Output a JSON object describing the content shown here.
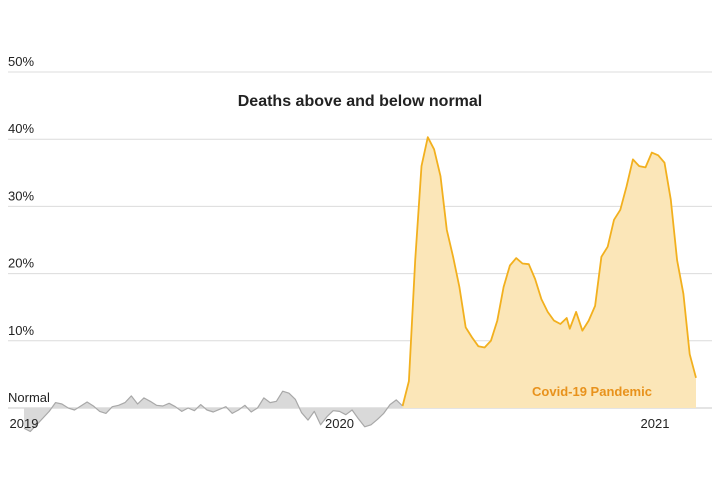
{
  "chart_data": {
    "type": "area",
    "title": "Deaths above and below normal",
    "xlabel": "",
    "ylabel": "",
    "y_unit": "%",
    "ylim": [
      -4,
      51
    ],
    "yticks": [
      {
        "value": 50,
        "label": "50%"
      },
      {
        "value": 40,
        "label": "40%"
      },
      {
        "value": 30,
        "label": "30%"
      },
      {
        "value": 20,
        "label": "20%"
      },
      {
        "value": 10,
        "label": "10%"
      },
      {
        "value": 0,
        "label": "Normal"
      }
    ],
    "xlim": [
      2019.0,
      2021.18
    ],
    "xticks": [
      {
        "value": 2019.0,
        "label": "2019"
      },
      {
        "value": 2020.0,
        "label": "2020"
      },
      {
        "value": 2021.0,
        "label": "2021"
      }
    ],
    "grid": true,
    "annotation": "Covid-19 Pandemic",
    "colors": {
      "baseline_line": "#a8a8a8",
      "baseline_fill": "#d9d9d9",
      "pandemic_line": "#f2b01e",
      "pandemic_fill": "#fbe6b8",
      "annotation_text": "#e8921c",
      "grid": "#dcdcdc"
    },
    "series": [
      {
        "segment": "baseline",
        "points": [
          [
            2019.0,
            -3.0
          ],
          [
            2019.02,
            -3.5
          ],
          [
            2019.04,
            -2.5
          ],
          [
            2019.06,
            -1.5
          ],
          [
            2019.08,
            -0.5
          ],
          [
            2019.1,
            0.8
          ],
          [
            2019.12,
            0.6
          ],
          [
            2019.14,
            0.0
          ],
          [
            2019.16,
            -0.3
          ],
          [
            2019.18,
            0.3
          ],
          [
            2019.2,
            0.9
          ],
          [
            2019.22,
            0.3
          ],
          [
            2019.24,
            -0.5
          ],
          [
            2019.26,
            -0.8
          ],
          [
            2019.28,
            0.2
          ],
          [
            2019.3,
            0.4
          ],
          [
            2019.32,
            0.8
          ],
          [
            2019.34,
            1.8
          ],
          [
            2019.36,
            0.6
          ],
          [
            2019.38,
            1.5
          ],
          [
            2019.4,
            1.0
          ],
          [
            2019.42,
            0.4
          ],
          [
            2019.44,
            0.3
          ],
          [
            2019.46,
            0.7
          ],
          [
            2019.48,
            0.2
          ],
          [
            2019.5,
            -0.5
          ],
          [
            2019.52,
            0.0
          ],
          [
            2019.54,
            -0.4
          ],
          [
            2019.56,
            0.5
          ],
          [
            2019.58,
            -0.3
          ],
          [
            2019.6,
            -0.6
          ],
          [
            2019.62,
            -0.2
          ],
          [
            2019.64,
            0.2
          ],
          [
            2019.66,
            -0.8
          ],
          [
            2019.68,
            -0.3
          ],
          [
            2019.7,
            0.4
          ],
          [
            2019.72,
            -0.6
          ],
          [
            2019.74,
            0.0
          ],
          [
            2019.76,
            1.5
          ],
          [
            2019.78,
            0.8
          ],
          [
            2019.8,
            1.0
          ],
          [
            2019.82,
            2.5
          ],
          [
            2019.84,
            2.2
          ],
          [
            2019.86,
            1.3
          ],
          [
            2019.88,
            -0.7
          ],
          [
            2019.9,
            -1.8
          ],
          [
            2019.92,
            -0.5
          ],
          [
            2019.94,
            -2.5
          ],
          [
            2019.96,
            -1.3
          ],
          [
            2019.98,
            -0.4
          ],
          [
            2020.0,
            -0.5
          ],
          [
            2020.02,
            -1.0
          ],
          [
            2020.04,
            -0.3
          ],
          [
            2020.06,
            -1.6
          ],
          [
            2020.08,
            -2.8
          ],
          [
            2020.1,
            -2.5
          ],
          [
            2020.12,
            -1.7
          ],
          [
            2020.14,
            -0.8
          ],
          [
            2020.16,
            0.5
          ],
          [
            2020.18,
            1.2
          ],
          [
            2020.2,
            0.3
          ]
        ]
      },
      {
        "segment": "pandemic",
        "points": [
          [
            2020.2,
            0.3
          ],
          [
            2020.22,
            4.0
          ],
          [
            2020.24,
            22.0
          ],
          [
            2020.26,
            36.0
          ],
          [
            2020.28,
            40.3
          ],
          [
            2020.3,
            38.5
          ],
          [
            2020.32,
            34.5
          ],
          [
            2020.34,
            26.5
          ],
          [
            2020.36,
            22.5
          ],
          [
            2020.38,
            18.0
          ],
          [
            2020.4,
            12.0
          ],
          [
            2020.42,
            10.5
          ],
          [
            2020.44,
            9.2
          ],
          [
            2020.46,
            9.0
          ],
          [
            2020.48,
            10.0
          ],
          [
            2020.5,
            13.0
          ],
          [
            2020.52,
            18.0
          ],
          [
            2020.54,
            21.2
          ],
          [
            2020.56,
            22.3
          ],
          [
            2020.58,
            21.5
          ],
          [
            2020.6,
            21.4
          ],
          [
            2020.62,
            19.2
          ],
          [
            2020.64,
            16.2
          ],
          [
            2020.66,
            14.3
          ],
          [
            2020.68,
            13.0
          ],
          [
            2020.7,
            12.5
          ],
          [
            2020.72,
            13.4
          ],
          [
            2020.73,
            11.8
          ],
          [
            2020.75,
            14.3
          ],
          [
            2020.77,
            11.5
          ],
          [
            2020.79,
            13.0
          ],
          [
            2020.81,
            15.2
          ],
          [
            2020.83,
            22.5
          ],
          [
            2020.85,
            24.0
          ],
          [
            2020.87,
            28.0
          ],
          [
            2020.89,
            29.5
          ],
          [
            2020.91,
            33.0
          ],
          [
            2020.93,
            37.0
          ],
          [
            2020.95,
            36.0
          ],
          [
            2020.97,
            35.8
          ],
          [
            2020.99,
            38.0
          ],
          [
            2021.01,
            37.6
          ],
          [
            2021.03,
            36.5
          ],
          [
            2021.05,
            31.0
          ],
          [
            2021.07,
            22.0
          ],
          [
            2021.09,
            17.0
          ],
          [
            2021.11,
            8.0
          ],
          [
            2021.13,
            4.5
          ]
        ]
      }
    ]
  }
}
